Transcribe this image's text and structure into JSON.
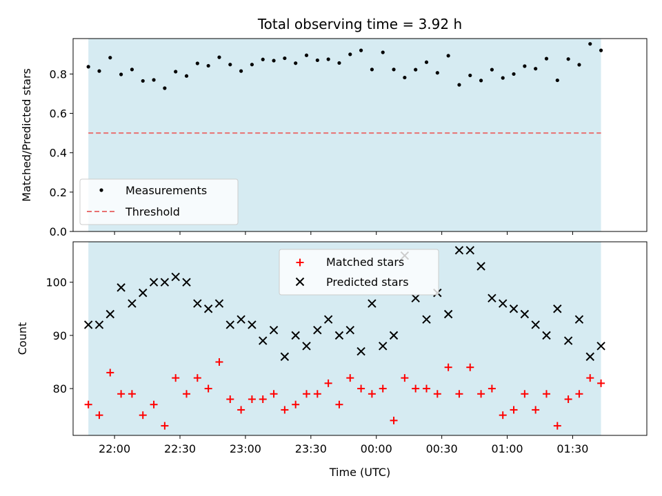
{
  "chart_data": [
    {
      "type": "scatter",
      "title": "Total observing time = 3.92 h",
      "ylabel": "Matched/Predicted stars",
      "xlabel": "",
      "xlim": [
        "21:41",
        "02:04"
      ],
      "ylim": [
        0,
        0.98
      ],
      "yticks": [
        0.0,
        0.2,
        0.4,
        0.6,
        0.8
      ],
      "xticks": [
        "22:00",
        "22:30",
        "23:00",
        "23:30",
        "00:00",
        "00:30",
        "01:00",
        "01:30"
      ],
      "shaded_span": [
        "21:48",
        "01:43"
      ],
      "shade_color": "#add8e6",
      "legend_position": "lower-left",
      "series": [
        {
          "name": "Measurements",
          "marker": "dot",
          "color": "#000000",
          "x": [
            "21:48",
            "21:53",
            "21:58",
            "22:03",
            "22:08",
            "22:13",
            "22:18",
            "22:23",
            "22:28",
            "22:33",
            "22:38",
            "22:43",
            "22:48",
            "22:53",
            "22:58",
            "23:03",
            "23:08",
            "23:13",
            "23:18",
            "23:23",
            "23:28",
            "23:33",
            "23:38",
            "23:43",
            "23:48",
            "23:53",
            "23:58",
            "00:03",
            "00:08",
            "00:13",
            "00:18",
            "00:23",
            "00:28",
            "00:33",
            "00:38",
            "00:43",
            "00:48",
            "00:53",
            "00:58",
            "01:03",
            "01:08",
            "01:13",
            "01:18",
            "01:23",
            "01:28",
            "01:33",
            "01:38",
            "01:43"
          ],
          "values": [
            0.837,
            0.815,
            0.883,
            0.798,
            0.823,
            0.765,
            0.77,
            0.728,
            0.812,
            0.79,
            0.854,
            0.842,
            0.885,
            0.848,
            0.815,
            0.848,
            0.874,
            0.868,
            0.88,
            0.855,
            0.895,
            0.87,
            0.875,
            0.856,
            0.9,
            0.92,
            0.823,
            0.91,
            0.823,
            0.782,
            0.822,
            0.86,
            0.806,
            0.893,
            0.745,
            0.793,
            0.767,
            0.822,
            0.78,
            0.8,
            0.84,
            0.827,
            0.878,
            0.768,
            0.876,
            0.847,
            0.953,
            0.92
          ]
        },
        {
          "name": "Threshold",
          "line": "dashed",
          "color": "#e87070",
          "y": 0.5
        }
      ]
    },
    {
      "type": "scatter",
      "title": "",
      "ylabel": "Count",
      "xlabel": "Time (UTC)",
      "xlim": [
        "21:41",
        "02:04"
      ],
      "ylim": [
        71.2,
        107.6
      ],
      "yticks": [
        80,
        90,
        100
      ],
      "xticks": [
        "22:00",
        "22:30",
        "23:00",
        "23:30",
        "00:00",
        "00:30",
        "01:00",
        "01:30"
      ],
      "shaded_span": [
        "21:48",
        "01:43"
      ],
      "shade_color": "#add8e6",
      "legend_position": "upper-center",
      "series": [
        {
          "name": "Matched stars",
          "marker": "plus",
          "color": "#ff0000",
          "x": [
            "21:48",
            "21:53",
            "21:58",
            "22:03",
            "22:08",
            "22:13",
            "22:18",
            "22:23",
            "22:28",
            "22:33",
            "22:38",
            "22:43",
            "22:48",
            "22:53",
            "22:58",
            "23:03",
            "23:08",
            "23:13",
            "23:18",
            "23:23",
            "23:28",
            "23:33",
            "23:38",
            "23:43",
            "23:48",
            "23:53",
            "23:58",
            "00:03",
            "00:08",
            "00:13",
            "00:18",
            "00:23",
            "00:28",
            "00:33",
            "00:38",
            "00:43",
            "00:48",
            "00:53",
            "00:58",
            "01:03",
            "01:08",
            "01:13",
            "01:18",
            "01:23",
            "01:28",
            "01:33",
            "01:38",
            "01:43"
          ],
          "values": [
            77,
            75,
            83,
            79,
            79,
            75,
            77,
            73,
            82,
            79,
            82,
            80,
            85,
            78,
            76,
            78,
            78,
            79,
            76,
            77,
            79,
            79,
            81,
            77,
            82,
            80,
            79,
            80,
            74,
            82,
            80,
            80,
            79,
            84,
            79,
            84,
            79,
            80,
            75,
            76,
            79,
            76,
            79,
            73,
            78,
            79,
            82,
            81
          ]
        },
        {
          "name": "Predicted stars",
          "marker": "x",
          "color": "#000000",
          "x": [
            "21:48",
            "21:53",
            "21:58",
            "22:03",
            "22:08",
            "22:13",
            "22:18",
            "22:23",
            "22:28",
            "22:33",
            "22:38",
            "22:43",
            "22:48",
            "22:53",
            "22:58",
            "23:03",
            "23:08",
            "23:13",
            "23:18",
            "23:23",
            "23:28",
            "23:33",
            "23:38",
            "23:43",
            "23:48",
            "23:53",
            "23:58",
            "00:03",
            "00:08",
            "00:13",
            "00:18",
            "00:23",
            "00:28",
            "00:33",
            "00:38",
            "00:43",
            "00:48",
            "00:53",
            "00:58",
            "01:03",
            "01:08",
            "01:13",
            "01:18",
            "01:23",
            "01:28",
            "01:33",
            "01:38",
            "01:43"
          ],
          "values": [
            92,
            92,
            94,
            99,
            96,
            98,
            100,
            100,
            101,
            100,
            96,
            95,
            96,
            92,
            93,
            92,
            89,
            91,
            86,
            90,
            88,
            91,
            93,
            90,
            91,
            87,
            96,
            88,
            90,
            105,
            97,
            93,
            98,
            94,
            106,
            106,
            103,
            97,
            96,
            95,
            94,
            92,
            90,
            95,
            89,
            93,
            86,
            88
          ]
        }
      ]
    }
  ]
}
